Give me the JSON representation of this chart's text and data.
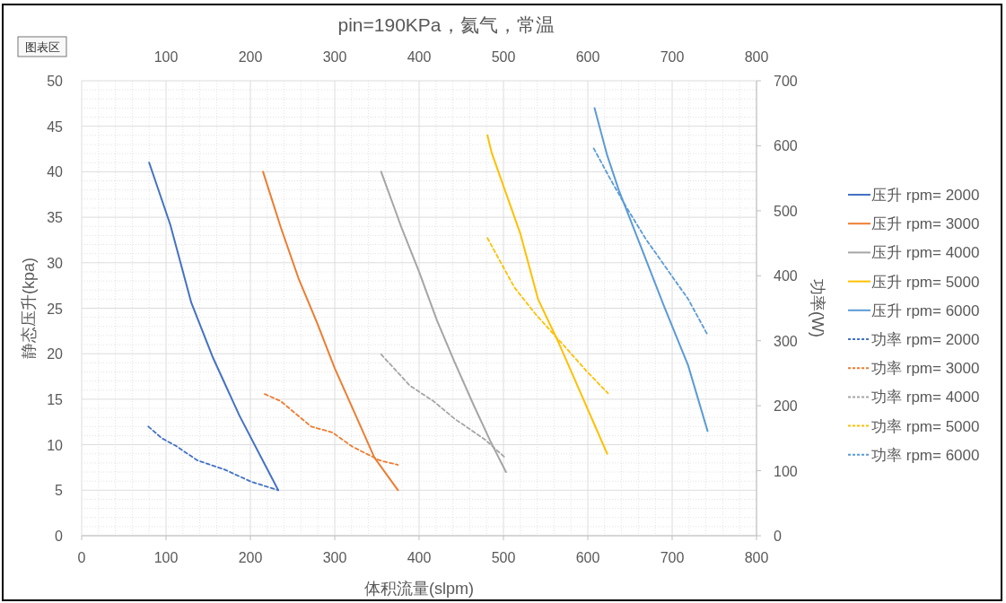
{
  "chart_data": {
    "type": "line",
    "title": "pin=190KPa，氦气，常温",
    "xlabel": "体积流量(slpm)",
    "ylabel": "静态压升(kpa)",
    "y2label": "功率(W)",
    "annotations": [
      "图表区"
    ],
    "xlim": [
      0,
      800
    ],
    "xticks": [
      0,
      100,
      200,
      300,
      400,
      500,
      600,
      700,
      800
    ],
    "x2lim": [
      0,
      800
    ],
    "x2ticks": [
      100,
      200,
      300,
      400,
      500,
      600,
      700,
      800
    ],
    "ylim": [
      0,
      50
    ],
    "yticks": [
      0,
      5,
      10,
      15,
      20,
      25,
      30,
      35,
      40,
      45,
      50
    ],
    "y2lim": [
      0,
      700
    ],
    "y2ticks": [
      0,
      100,
      200,
      300,
      400,
      500,
      600,
      700
    ],
    "grid": true,
    "legend": "right",
    "marker": "none",
    "series": [
      {
        "name": "压升 rpm= 2000",
        "color": "#4472c4",
        "line_style": "solid",
        "x": [
          80,
          105,
          130,
          155,
          187,
          233
        ],
        "values": [
          41,
          34.2,
          25.6,
          19.7,
          13.2,
          5
        ]
      },
      {
        "name": "压升 rpm= 3000",
        "color": "#ed7d31",
        "line_style": "solid",
        "x": [
          215,
          236,
          257,
          279,
          300,
          325,
          347,
          375
        ],
        "values": [
          40,
          33.9,
          28.3,
          23.4,
          18.4,
          13.2,
          8.6,
          5
        ]
      },
      {
        "name": "压升 rpm= 4000",
        "color": "#a5a5a5",
        "line_style": "solid",
        "x": [
          355,
          379,
          400,
          421,
          442,
          464,
          485,
          503
        ],
        "values": [
          40,
          33.9,
          29,
          23.7,
          19.1,
          14.5,
          10.3,
          7
        ]
      },
      {
        "name": "压升 rpm= 5000",
        "color": "#ffc000",
        "line_style": "solid",
        "x": [
          481,
          486,
          520,
          541,
          566,
          591,
          623
        ],
        "values": [
          44,
          42.1,
          33.2,
          26,
          21.1,
          15.8,
          9
        ]
      },
      {
        "name": "压升 rpm= 6000",
        "color": "#5b9bd5",
        "line_style": "solid",
        "x": [
          608,
          623,
          637,
          662,
          690,
          719,
          742
        ],
        "values": [
          47,
          41.8,
          37.9,
          32,
          25.3,
          18.7,
          11.5
        ]
      },
      {
        "name": "功率 rpm= 2000",
        "color": "#4472c4",
        "line_style": "dashed",
        "axis": "y2",
        "x": [
          79,
          95,
          112,
          137,
          169,
          201,
          233
        ],
        "values": [
          168,
          150,
          138,
          116,
          102,
          83,
          70
        ]
      },
      {
        "name": "功率 rpm= 3000",
        "color": "#ed7d31",
        "line_style": "dashed",
        "axis": "y2",
        "x": [
          217,
          236,
          272,
          297,
          321,
          353,
          375
        ],
        "values": [
          218,
          207,
          168,
          159,
          137,
          116,
          109
        ]
      },
      {
        "name": "功率 rpm= 4000",
        "color": "#a5a5a5",
        "line_style": "dashed",
        "axis": "y2",
        "x": [
          355,
          389,
          417,
          442,
          478,
          503
        ],
        "values": [
          279,
          231,
          207,
          180,
          148,
          119
        ]
      },
      {
        "name": "功率 rpm= 5000",
        "color": "#ffc000",
        "line_style": "dashed",
        "axis": "y2",
        "x": [
          481,
          513,
          538,
          570,
          598,
          624
        ],
        "values": [
          458,
          382,
          341,
          295,
          254,
          219
        ]
      },
      {
        "name": "功率 rpm= 6000",
        "color": "#5b9bd5",
        "line_style": "dashed",
        "axis": "y2",
        "x": [
          607,
          627,
          645,
          669,
          694,
          719,
          742
        ],
        "values": [
          596,
          548,
          507,
          456,
          410,
          364,
          309
        ]
      }
    ]
  }
}
